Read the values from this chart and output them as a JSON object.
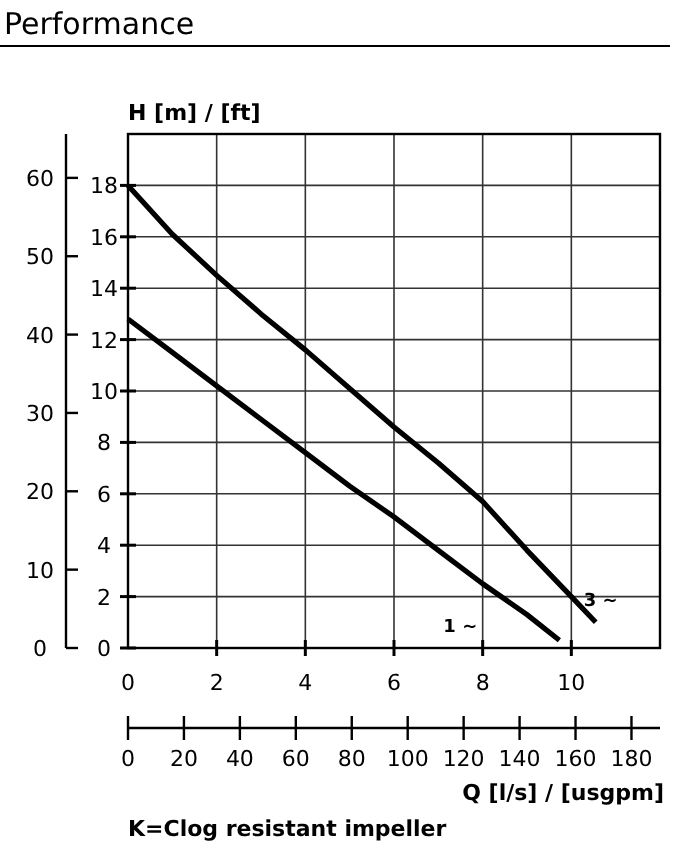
{
  "chart_data": {
    "type": "line",
    "title": "Performance",
    "ylabel": "H [m] / [ft]",
    "xlabel": "Q [l/s] / [usgpm]",
    "annotations": [
      "K=Clog resistant impeller"
    ],
    "xlim": [
      0,
      12
    ],
    "xticks": [
      0,
      2,
      4,
      6,
      8,
      10
    ],
    "x2lim": [
      0,
      190.2
    ],
    "x2ticks": [
      0,
      20,
      40,
      60,
      80,
      100,
      120,
      140,
      160,
      180
    ],
    "ylim": [
      0,
      20
    ],
    "yticks": [
      0,
      2,
      4,
      6,
      8,
      10,
      12,
      14,
      16,
      18
    ],
    "y2lim": [
      0,
      65.6
    ],
    "y2ticks": [
      0,
      10,
      20,
      30,
      40,
      50,
      60
    ],
    "grid": true,
    "marker": "none",
    "line_style": "solid",
    "series": [
      {
        "name": "3 ~",
        "color": "#000000",
        "x": [
          0,
          1,
          2,
          3,
          4,
          5,
          6,
          7,
          8,
          9,
          10,
          10.55
        ],
        "values": [
          18,
          16.1,
          14.5,
          13.0,
          11.6,
          10.1,
          8.6,
          7.2,
          5.7,
          3.8,
          2.0,
          1.0
        ]
      },
      {
        "name": "1 ~",
        "color": "#000000",
        "x": [
          0,
          1,
          2,
          3,
          4,
          5,
          6,
          7,
          8,
          9,
          9.73
        ],
        "values": [
          12.8,
          11.5,
          10.2,
          8.9,
          7.6,
          6.3,
          5.1,
          3.8,
          2.5,
          1.3,
          0.3
        ]
      }
    ]
  }
}
